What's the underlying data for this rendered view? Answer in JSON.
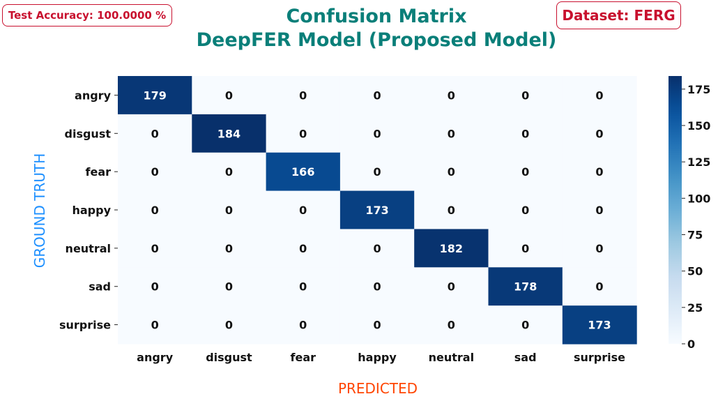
{
  "header": {
    "accuracy_badge": "Test Accuracy: 100.0000 %",
    "dataset_badge": "Dataset: FERG",
    "title_line1": "Confusion Matrix",
    "title_line2": "DeepFER Model (Proposed Model)"
  },
  "chart_data": {
    "type": "heatmap",
    "title": "Confusion Matrix\nDeepFER Model (Proposed Model)",
    "xlabel": "PREDICTED",
    "ylabel": "GROUND TRUTH",
    "x_categories": [
      "angry",
      "disgust",
      "fear",
      "happy",
      "neutral",
      "sad",
      "surprise"
    ],
    "y_categories": [
      "angry",
      "disgust",
      "fear",
      "happy",
      "neutral",
      "sad",
      "surprise"
    ],
    "values": [
      [
        179,
        0,
        0,
        0,
        0,
        0,
        0
      ],
      [
        0,
        184,
        0,
        0,
        0,
        0,
        0
      ],
      [
        0,
        0,
        166,
        0,
        0,
        0,
        0
      ],
      [
        0,
        0,
        0,
        173,
        0,
        0,
        0
      ],
      [
        0,
        0,
        0,
        0,
        182,
        0,
        0
      ],
      [
        0,
        0,
        0,
        0,
        0,
        178,
        0
      ],
      [
        0,
        0,
        0,
        0,
        0,
        0,
        173
      ]
    ],
    "colorbar": {
      "min": 0,
      "max": 184,
      "ticks": [
        0,
        25,
        50,
        75,
        100,
        125,
        150,
        175
      ]
    },
    "colormap": "Blues",
    "colors": {
      "low": "#f7fbff",
      "high": "#08306b",
      "title": "#0a7f79",
      "xlabel": "#ff4500",
      "ylabel": "#1e90ff",
      "badge": "#c8102e"
    }
  }
}
